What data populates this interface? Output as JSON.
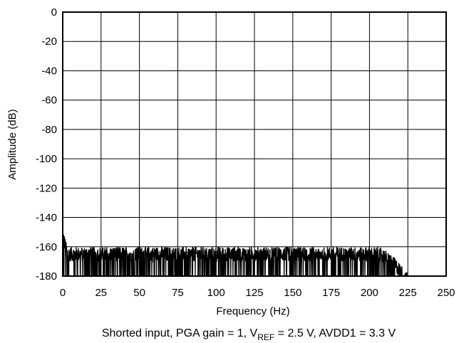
{
  "chart_data": {
    "type": "line",
    "xlabel": "Frequency (Hz)",
    "ylabel": "Amplitude (dB)",
    "xlim": [
      0,
      250
    ],
    "ylim": [
      -180,
      0
    ],
    "x_ticks": [
      0,
      25,
      50,
      75,
      100,
      125,
      150,
      175,
      200,
      225,
      250
    ],
    "y_ticks": [
      0,
      -20,
      -40,
      -60,
      -80,
      -100,
      -120,
      -140,
      -160,
      -180
    ],
    "grid": true,
    "legend": "none",
    "series": [
      {
        "color": "#000000",
        "noise_floor_db": -165,
        "rolloff_start_hz": 205,
        "cutoff_hz": 225,
        "peak_at_dc_db": -152
      }
    ],
    "caption": {
      "prefix": "Shorted input, PGA gain = 1, V",
      "sub": "REF",
      "suffix": " = 2.5 V, AVDD1 = 3.3 V"
    }
  }
}
